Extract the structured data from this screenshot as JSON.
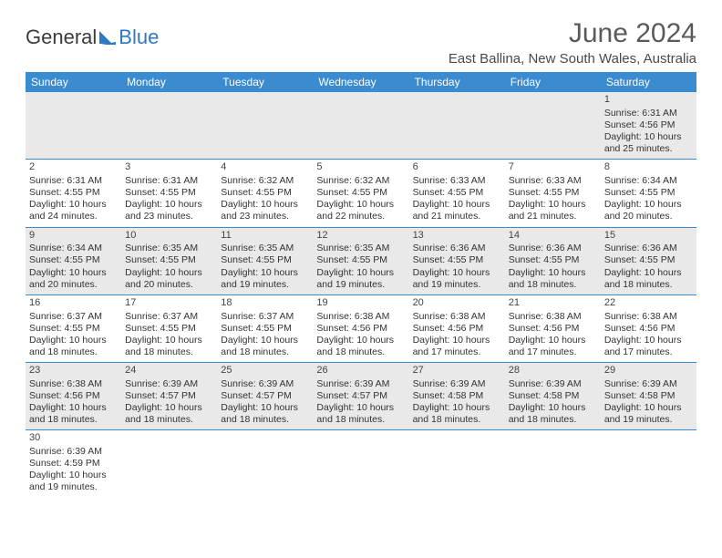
{
  "brand": {
    "part1": "General",
    "part2": "Blue"
  },
  "title": "June 2024",
  "location": "East Ballina, New South Wales, Australia",
  "colors": {
    "header_bg": "#3b8bd0",
    "header_text": "#ffffff",
    "row_alt_bg": "#e9e9e9",
    "border": "#3b8bd0",
    "text": "#333333",
    "logo_blue": "#2f79c2"
  },
  "weekdays": [
    "Sunday",
    "Monday",
    "Tuesday",
    "Wednesday",
    "Thursday",
    "Friday",
    "Saturday"
  ],
  "weeks": [
    [
      null,
      null,
      null,
      null,
      null,
      null,
      {
        "day": "1",
        "sunrise": "Sunrise: 6:31 AM",
        "sunset": "Sunset: 4:56 PM",
        "daylight": "Daylight: 10 hours and 25 minutes."
      }
    ],
    [
      {
        "day": "2",
        "sunrise": "Sunrise: 6:31 AM",
        "sunset": "Sunset: 4:55 PM",
        "daylight": "Daylight: 10 hours and 24 minutes."
      },
      {
        "day": "3",
        "sunrise": "Sunrise: 6:31 AM",
        "sunset": "Sunset: 4:55 PM",
        "daylight": "Daylight: 10 hours and 23 minutes."
      },
      {
        "day": "4",
        "sunrise": "Sunrise: 6:32 AM",
        "sunset": "Sunset: 4:55 PM",
        "daylight": "Daylight: 10 hours and 23 minutes."
      },
      {
        "day": "5",
        "sunrise": "Sunrise: 6:32 AM",
        "sunset": "Sunset: 4:55 PM",
        "daylight": "Daylight: 10 hours and 22 minutes."
      },
      {
        "day": "6",
        "sunrise": "Sunrise: 6:33 AM",
        "sunset": "Sunset: 4:55 PM",
        "daylight": "Daylight: 10 hours and 21 minutes."
      },
      {
        "day": "7",
        "sunrise": "Sunrise: 6:33 AM",
        "sunset": "Sunset: 4:55 PM",
        "daylight": "Daylight: 10 hours and 21 minutes."
      },
      {
        "day": "8",
        "sunrise": "Sunrise: 6:34 AM",
        "sunset": "Sunset: 4:55 PM",
        "daylight": "Daylight: 10 hours and 20 minutes."
      }
    ],
    [
      {
        "day": "9",
        "sunrise": "Sunrise: 6:34 AM",
        "sunset": "Sunset: 4:55 PM",
        "daylight": "Daylight: 10 hours and 20 minutes."
      },
      {
        "day": "10",
        "sunrise": "Sunrise: 6:35 AM",
        "sunset": "Sunset: 4:55 PM",
        "daylight": "Daylight: 10 hours and 20 minutes."
      },
      {
        "day": "11",
        "sunrise": "Sunrise: 6:35 AM",
        "sunset": "Sunset: 4:55 PM",
        "daylight": "Daylight: 10 hours and 19 minutes."
      },
      {
        "day": "12",
        "sunrise": "Sunrise: 6:35 AM",
        "sunset": "Sunset: 4:55 PM",
        "daylight": "Daylight: 10 hours and 19 minutes."
      },
      {
        "day": "13",
        "sunrise": "Sunrise: 6:36 AM",
        "sunset": "Sunset: 4:55 PM",
        "daylight": "Daylight: 10 hours and 19 minutes."
      },
      {
        "day": "14",
        "sunrise": "Sunrise: 6:36 AM",
        "sunset": "Sunset: 4:55 PM",
        "daylight": "Daylight: 10 hours and 18 minutes."
      },
      {
        "day": "15",
        "sunrise": "Sunrise: 6:36 AM",
        "sunset": "Sunset: 4:55 PM",
        "daylight": "Daylight: 10 hours and 18 minutes."
      }
    ],
    [
      {
        "day": "16",
        "sunrise": "Sunrise: 6:37 AM",
        "sunset": "Sunset: 4:55 PM",
        "daylight": "Daylight: 10 hours and 18 minutes."
      },
      {
        "day": "17",
        "sunrise": "Sunrise: 6:37 AM",
        "sunset": "Sunset: 4:55 PM",
        "daylight": "Daylight: 10 hours and 18 minutes."
      },
      {
        "day": "18",
        "sunrise": "Sunrise: 6:37 AM",
        "sunset": "Sunset: 4:55 PM",
        "daylight": "Daylight: 10 hours and 18 minutes."
      },
      {
        "day": "19",
        "sunrise": "Sunrise: 6:38 AM",
        "sunset": "Sunset: 4:56 PM",
        "daylight": "Daylight: 10 hours and 18 minutes."
      },
      {
        "day": "20",
        "sunrise": "Sunrise: 6:38 AM",
        "sunset": "Sunset: 4:56 PM",
        "daylight": "Daylight: 10 hours and 17 minutes."
      },
      {
        "day": "21",
        "sunrise": "Sunrise: 6:38 AM",
        "sunset": "Sunset: 4:56 PM",
        "daylight": "Daylight: 10 hours and 17 minutes."
      },
      {
        "day": "22",
        "sunrise": "Sunrise: 6:38 AM",
        "sunset": "Sunset: 4:56 PM",
        "daylight": "Daylight: 10 hours and 17 minutes."
      }
    ],
    [
      {
        "day": "23",
        "sunrise": "Sunrise: 6:38 AM",
        "sunset": "Sunset: 4:56 PM",
        "daylight": "Daylight: 10 hours and 18 minutes."
      },
      {
        "day": "24",
        "sunrise": "Sunrise: 6:39 AM",
        "sunset": "Sunset: 4:57 PM",
        "daylight": "Daylight: 10 hours and 18 minutes."
      },
      {
        "day": "25",
        "sunrise": "Sunrise: 6:39 AM",
        "sunset": "Sunset: 4:57 PM",
        "daylight": "Daylight: 10 hours and 18 minutes."
      },
      {
        "day": "26",
        "sunrise": "Sunrise: 6:39 AM",
        "sunset": "Sunset: 4:57 PM",
        "daylight": "Daylight: 10 hours and 18 minutes."
      },
      {
        "day": "27",
        "sunrise": "Sunrise: 6:39 AM",
        "sunset": "Sunset: 4:58 PM",
        "daylight": "Daylight: 10 hours and 18 minutes."
      },
      {
        "day": "28",
        "sunrise": "Sunrise: 6:39 AM",
        "sunset": "Sunset: 4:58 PM",
        "daylight": "Daylight: 10 hours and 18 minutes."
      },
      {
        "day": "29",
        "sunrise": "Sunrise: 6:39 AM",
        "sunset": "Sunset: 4:58 PM",
        "daylight": "Daylight: 10 hours and 19 minutes."
      }
    ],
    [
      {
        "day": "30",
        "sunrise": "Sunrise: 6:39 AM",
        "sunset": "Sunset: 4:59 PM",
        "daylight": "Daylight: 10 hours and 19 minutes."
      },
      null,
      null,
      null,
      null,
      null,
      null
    ]
  ]
}
